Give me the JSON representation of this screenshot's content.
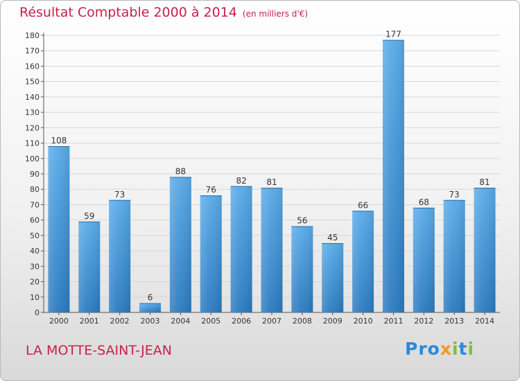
{
  "chart_data": {
    "type": "bar",
    "title": "Résultat Comptable 2000 à 2014",
    "unit_label": "(en milliers d'€)",
    "categories": [
      "2000",
      "2001",
      "2002",
      "2003",
      "2004",
      "2005",
      "2006",
      "2007",
      "2008",
      "2009",
      "2010",
      "2011",
      "2012",
      "2013",
      "2014"
    ],
    "values": [
      108,
      59,
      73,
      6,
      88,
      76,
      82,
      81,
      56,
      45,
      66,
      177,
      68,
      73,
      81
    ],
    "ylim": [
      0,
      180
    ],
    "yticks": [
      0,
      10,
      20,
      30,
      40,
      50,
      60,
      70,
      80,
      90,
      100,
      110,
      120,
      130,
      140,
      150,
      160,
      170,
      180
    ],
    "grid": true,
    "xlabel": "",
    "ylabel": ""
  },
  "footer": {
    "commune": "LA MOTTE-SAINT-JEAN",
    "logo": {
      "p1": "Pro",
      "p2": "x",
      "p3": "i",
      "p4": "t",
      "p5": "i"
    }
  },
  "colors": {
    "title": "#c8204a",
    "bar_top": "#5aabe8",
    "bar_bottom": "#2b7ac0",
    "grid": "#d7d7d7"
  }
}
